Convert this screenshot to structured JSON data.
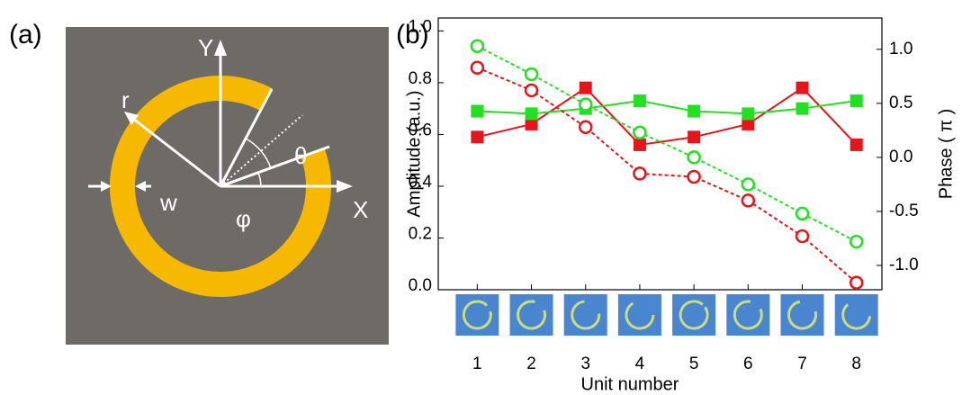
{
  "diagram": {
    "panel_label": "(a)",
    "labels": {
      "y_axis": "Y",
      "x_axis": "X",
      "radius": "r",
      "width": "w",
      "phi": "φ",
      "theta": "θ"
    }
  },
  "chart_data": {
    "type": "line",
    "panel_label": "(b)",
    "x_label": "Unit number",
    "y_label": "Amplitude (a.u.)",
    "y2_label": "Phase ( π )",
    "x": [
      1,
      2,
      3,
      4,
      5,
      6,
      7,
      8
    ],
    "xlim": [
      0.28,
      8.47
    ],
    "xticks": [
      1,
      2,
      3,
      4,
      5,
      6,
      7,
      8
    ],
    "ylim": [
      0,
      1.05
    ],
    "yticks": [
      {
        "value": 0,
        "label": "0.0"
      },
      0.2,
      0.4,
      0.6,
      0.8,
      {
        "value": 1,
        "label": "1.0"
      }
    ],
    "y2lim": [
      -1.225,
      1.29
    ],
    "y2ticks": [
      {
        "value": -1,
        "label": "-1.0"
      },
      -0.5,
      {
        "value": 0,
        "label": "0.0"
      },
      0.5,
      {
        "value": 1,
        "label": "1.0"
      }
    ],
    "series": [
      {
        "color": "#e8141b",
        "marker": "square",
        "dash": false,
        "values": [
          0.59,
          0.64,
          0.78,
          0.56,
          0.59,
          0.64,
          0.78,
          0.56
        ]
      },
      {
        "color": "#22e022",
        "marker": "square",
        "dash": false,
        "values": [
          0.69,
          0.68,
          0.7,
          0.73,
          0.69,
          0.68,
          0.7,
          0.73
        ]
      },
      {
        "color": "#22e022",
        "marker": "circle",
        "dash": true,
        "axis": "y2",
        "values": [
          1.03,
          0.77,
          0.49,
          0.23,
          0.0,
          -0.25,
          -0.52,
          -0.78
        ]
      },
      {
        "color": "#e8141b",
        "marker": "circle",
        "dash": true,
        "axis": "y2",
        "values": [
          0.83,
          0.62,
          0.28,
          -0.15,
          -0.18,
          -0.4,
          -0.73,
          -1.16
        ]
      }
    ]
  }
}
